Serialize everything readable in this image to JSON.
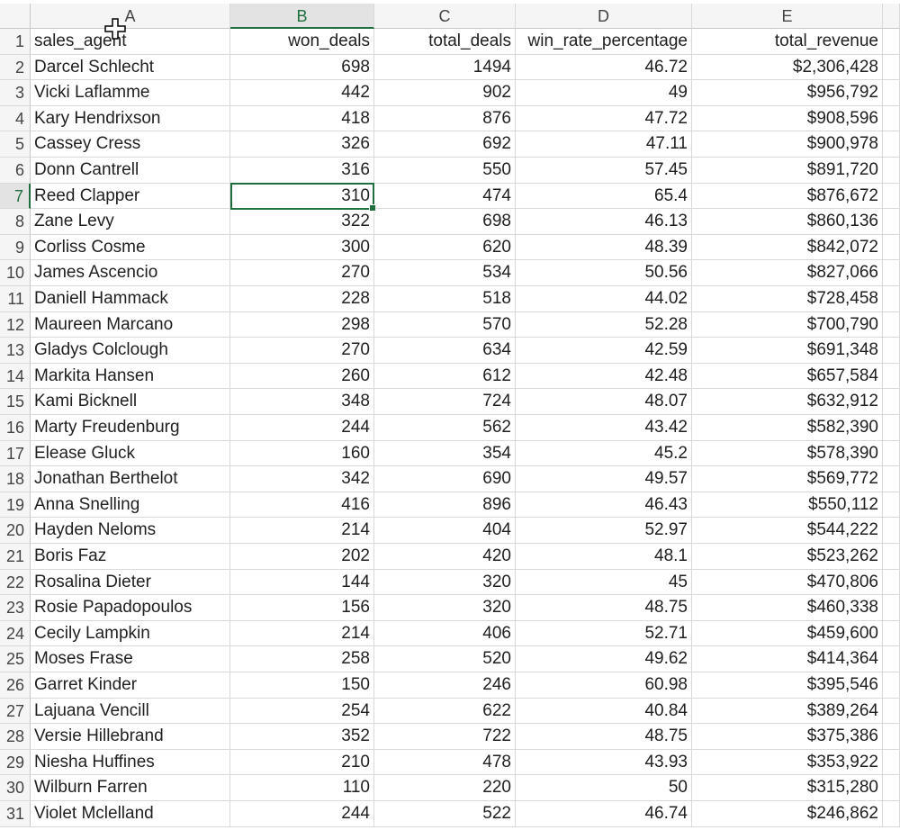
{
  "spreadsheet": {
    "column_letters": [
      "A",
      "B",
      "C",
      "D",
      "E"
    ],
    "active_column": "B",
    "active_row": "7",
    "headers": [
      "sales_agent",
      "won_deals",
      "total_deals",
      "win_rate_percentage",
      "total_revenue"
    ],
    "rows": [
      {
        "n": "1"
      },
      {
        "n": "2",
        "agent": "Darcel Schlecht",
        "won": "698",
        "total": "1494",
        "rate": "46.72",
        "revenue": "$2,306,428"
      },
      {
        "n": "3",
        "agent": "Vicki Laflamme",
        "won": "442",
        "total": "902",
        "rate": "49",
        "revenue": "$956,792"
      },
      {
        "n": "4",
        "agent": "Kary Hendrixson",
        "won": "418",
        "total": "876",
        "rate": "47.72",
        "revenue": "$908,596"
      },
      {
        "n": "5",
        "agent": "Cassey Cress",
        "won": "326",
        "total": "692",
        "rate": "47.11",
        "revenue": "$900,978"
      },
      {
        "n": "6",
        "agent": "Donn Cantrell",
        "won": "316",
        "total": "550",
        "rate": "57.45",
        "revenue": "$891,720"
      },
      {
        "n": "7",
        "agent": "Reed Clapper",
        "won": "310",
        "total": "474",
        "rate": "65.4",
        "revenue": "$876,672"
      },
      {
        "n": "8",
        "agent": "Zane Levy",
        "won": "322",
        "total": "698",
        "rate": "46.13",
        "revenue": "$860,136"
      },
      {
        "n": "9",
        "agent": "Corliss Cosme",
        "won": "300",
        "total": "620",
        "rate": "48.39",
        "revenue": "$842,072"
      },
      {
        "n": "10",
        "agent": "James Ascencio",
        "won": "270",
        "total": "534",
        "rate": "50.56",
        "revenue": "$827,066"
      },
      {
        "n": "11",
        "agent": "Daniell Hammack",
        "won": "228",
        "total": "518",
        "rate": "44.02",
        "revenue": "$728,458"
      },
      {
        "n": "12",
        "agent": "Maureen Marcano",
        "won": "298",
        "total": "570",
        "rate": "52.28",
        "revenue": "$700,790"
      },
      {
        "n": "13",
        "agent": "Gladys Colclough",
        "won": "270",
        "total": "634",
        "rate": "42.59",
        "revenue": "$691,348"
      },
      {
        "n": "14",
        "agent": "Markita Hansen",
        "won": "260",
        "total": "612",
        "rate": "42.48",
        "revenue": "$657,584"
      },
      {
        "n": "15",
        "agent": "Kami Bicknell",
        "won": "348",
        "total": "724",
        "rate": "48.07",
        "revenue": "$632,912"
      },
      {
        "n": "16",
        "agent": "Marty Freudenburg",
        "won": "244",
        "total": "562",
        "rate": "43.42",
        "revenue": "$582,390"
      },
      {
        "n": "17",
        "agent": "Elease Gluck",
        "won": "160",
        "total": "354",
        "rate": "45.2",
        "revenue": "$578,390"
      },
      {
        "n": "18",
        "agent": "Jonathan Berthelot",
        "won": "342",
        "total": "690",
        "rate": "49.57",
        "revenue": "$569,772"
      },
      {
        "n": "19",
        "agent": "Anna Snelling",
        "won": "416",
        "total": "896",
        "rate": "46.43",
        "revenue": "$550,112"
      },
      {
        "n": "20",
        "agent": "Hayden Neloms",
        "won": "214",
        "total": "404",
        "rate": "52.97",
        "revenue": "$544,222"
      },
      {
        "n": "21",
        "agent": "Boris Faz",
        "won": "202",
        "total": "420",
        "rate": "48.1",
        "revenue": "$523,262"
      },
      {
        "n": "22",
        "agent": "Rosalina Dieter",
        "won": "144",
        "total": "320",
        "rate": "45",
        "revenue": "$470,806"
      },
      {
        "n": "23",
        "agent": "Rosie Papadopoulos",
        "won": "156",
        "total": "320",
        "rate": "48.75",
        "revenue": "$460,338"
      },
      {
        "n": "24",
        "agent": "Cecily Lampkin",
        "won": "214",
        "total": "406",
        "rate": "52.71",
        "revenue": "$459,600"
      },
      {
        "n": "25",
        "agent": "Moses Frase",
        "won": "258",
        "total": "520",
        "rate": "49.62",
        "revenue": "$414,364"
      },
      {
        "n": "26",
        "agent": "Garret Kinder",
        "won": "150",
        "total": "246",
        "rate": "60.98",
        "revenue": "$395,546"
      },
      {
        "n": "27",
        "agent": "Lajuana Vencill",
        "won": "254",
        "total": "622",
        "rate": "40.84",
        "revenue": "$389,264"
      },
      {
        "n": "28",
        "agent": "Versie Hillebrand",
        "won": "352",
        "total": "722",
        "rate": "48.75",
        "revenue": "$375,386"
      },
      {
        "n": "29",
        "agent": "Niesha Huffines",
        "won": "210",
        "total": "478",
        "rate": "43.93",
        "revenue": "$353,922"
      },
      {
        "n": "30",
        "agent": "Wilburn Farren",
        "won": "110",
        "total": "220",
        "rate": "50",
        "revenue": "$315,280"
      },
      {
        "n": "31",
        "agent": "Violet Mclelland",
        "won": "244",
        "total": "522",
        "rate": "46.74",
        "revenue": "$246,862"
      }
    ],
    "colors": {
      "accent": "#1e6e3e",
      "header_bg": "#f5f5f5",
      "gridline": "#d9d9d9"
    },
    "icons": {
      "cursor": "cell-select-cursor-icon"
    }
  }
}
